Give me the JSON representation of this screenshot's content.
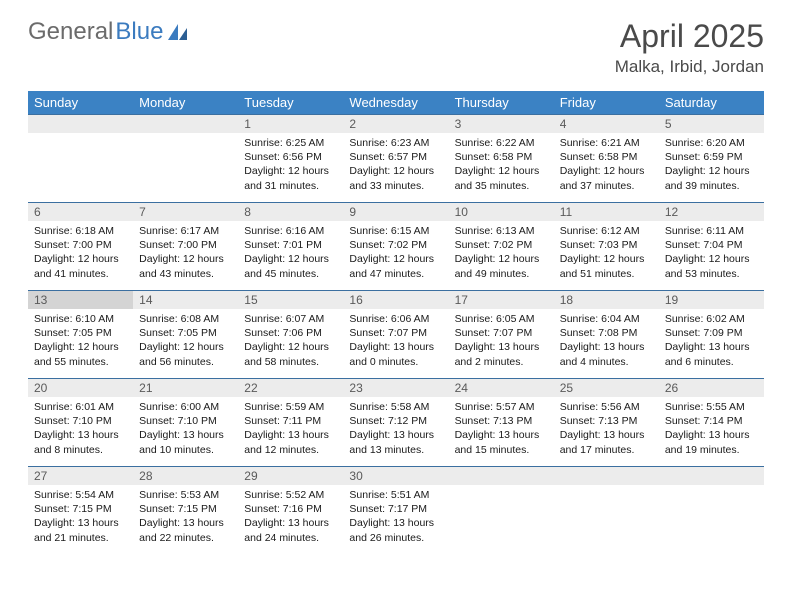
{
  "logo": {
    "text1": "General",
    "text2": "Blue"
  },
  "title": "April 2025",
  "subtitle": "Malka, Irbid, Jordan",
  "colors": {
    "header_bg": "#3b82c4",
    "header_text": "#ffffff",
    "daynum_bg": "#ececec",
    "cell_border": "#3b6fa0",
    "logo_gray": "#6b6b6b",
    "logo_blue": "#3b7bbf"
  },
  "weekdays": [
    "Sunday",
    "Monday",
    "Tuesday",
    "Wednesday",
    "Thursday",
    "Friday",
    "Saturday"
  ],
  "weeks": [
    [
      null,
      null,
      {
        "n": "1",
        "sr": "6:25 AM",
        "ss": "6:56 PM",
        "dl": "12 hours and 31 minutes."
      },
      {
        "n": "2",
        "sr": "6:23 AM",
        "ss": "6:57 PM",
        "dl": "12 hours and 33 minutes."
      },
      {
        "n": "3",
        "sr": "6:22 AM",
        "ss": "6:58 PM",
        "dl": "12 hours and 35 minutes."
      },
      {
        "n": "4",
        "sr": "6:21 AM",
        "ss": "6:58 PM",
        "dl": "12 hours and 37 minutes."
      },
      {
        "n": "5",
        "sr": "6:20 AM",
        "ss": "6:59 PM",
        "dl": "12 hours and 39 minutes."
      }
    ],
    [
      {
        "n": "6",
        "sr": "6:18 AM",
        "ss": "7:00 PM",
        "dl": "12 hours and 41 minutes."
      },
      {
        "n": "7",
        "sr": "6:17 AM",
        "ss": "7:00 PM",
        "dl": "12 hours and 43 minutes."
      },
      {
        "n": "8",
        "sr": "6:16 AM",
        "ss": "7:01 PM",
        "dl": "12 hours and 45 minutes."
      },
      {
        "n": "9",
        "sr": "6:15 AM",
        "ss": "7:02 PM",
        "dl": "12 hours and 47 minutes."
      },
      {
        "n": "10",
        "sr": "6:13 AM",
        "ss": "7:02 PM",
        "dl": "12 hours and 49 minutes."
      },
      {
        "n": "11",
        "sr": "6:12 AM",
        "ss": "7:03 PM",
        "dl": "12 hours and 51 minutes."
      },
      {
        "n": "12",
        "sr": "6:11 AM",
        "ss": "7:04 PM",
        "dl": "12 hours and 53 minutes."
      }
    ],
    [
      {
        "n": "13",
        "sr": "6:10 AM",
        "ss": "7:05 PM",
        "dl": "12 hours and 55 minutes.",
        "hl": true
      },
      {
        "n": "14",
        "sr": "6:08 AM",
        "ss": "7:05 PM",
        "dl": "12 hours and 56 minutes."
      },
      {
        "n": "15",
        "sr": "6:07 AM",
        "ss": "7:06 PM",
        "dl": "12 hours and 58 minutes."
      },
      {
        "n": "16",
        "sr": "6:06 AM",
        "ss": "7:07 PM",
        "dl": "13 hours and 0 minutes."
      },
      {
        "n": "17",
        "sr": "6:05 AM",
        "ss": "7:07 PM",
        "dl": "13 hours and 2 minutes."
      },
      {
        "n": "18",
        "sr": "6:04 AM",
        "ss": "7:08 PM",
        "dl": "13 hours and 4 minutes."
      },
      {
        "n": "19",
        "sr": "6:02 AM",
        "ss": "7:09 PM",
        "dl": "13 hours and 6 minutes."
      }
    ],
    [
      {
        "n": "20",
        "sr": "6:01 AM",
        "ss": "7:10 PM",
        "dl": "13 hours and 8 minutes."
      },
      {
        "n": "21",
        "sr": "6:00 AM",
        "ss": "7:10 PM",
        "dl": "13 hours and 10 minutes."
      },
      {
        "n": "22",
        "sr": "5:59 AM",
        "ss": "7:11 PM",
        "dl": "13 hours and 12 minutes."
      },
      {
        "n": "23",
        "sr": "5:58 AM",
        "ss": "7:12 PM",
        "dl": "13 hours and 13 minutes."
      },
      {
        "n": "24",
        "sr": "5:57 AM",
        "ss": "7:13 PM",
        "dl": "13 hours and 15 minutes."
      },
      {
        "n": "25",
        "sr": "5:56 AM",
        "ss": "7:13 PM",
        "dl": "13 hours and 17 minutes."
      },
      {
        "n": "26",
        "sr": "5:55 AM",
        "ss": "7:14 PM",
        "dl": "13 hours and 19 minutes."
      }
    ],
    [
      {
        "n": "27",
        "sr": "5:54 AM",
        "ss": "7:15 PM",
        "dl": "13 hours and 21 minutes."
      },
      {
        "n": "28",
        "sr": "5:53 AM",
        "ss": "7:15 PM",
        "dl": "13 hours and 22 minutes."
      },
      {
        "n": "29",
        "sr": "5:52 AM",
        "ss": "7:16 PM",
        "dl": "13 hours and 24 minutes."
      },
      {
        "n": "30",
        "sr": "5:51 AM",
        "ss": "7:17 PM",
        "dl": "13 hours and 26 minutes."
      },
      null,
      null,
      null
    ]
  ],
  "labels": {
    "sunrise": "Sunrise:",
    "sunset": "Sunset:",
    "daylight": "Daylight:"
  }
}
